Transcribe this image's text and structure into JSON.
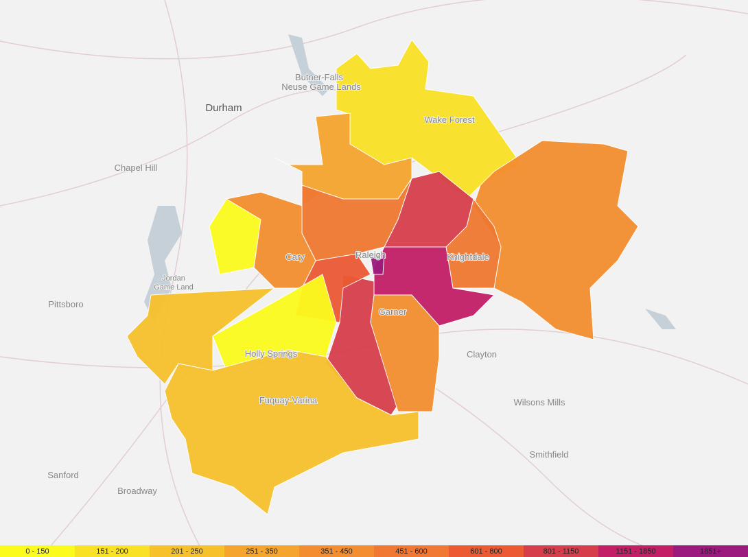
{
  "map": {
    "places": [
      "Durham",
      "Chapel Hill",
      "Butner-Falls",
      "Neuse Game Lands",
      "Wake Forest",
      "Cary",
      "Raleigh",
      "Knightdale",
      "Garner",
      "Jordan",
      "Game Land",
      "Pittsboro",
      "Clayton",
      "Wilsons Mills",
      "Smithfield",
      "Sanford",
      "Broadway",
      "Holly Springs",
      "Fuquay-Varina"
    ]
  },
  "legend": {
    "bins": [
      {
        "label": "0 - 150",
        "color": "#fbfb1e"
      },
      {
        "label": "151 - 200",
        "color": "#f9e225"
      },
      {
        "label": "201 - 250",
        "color": "#f7c12c"
      },
      {
        "label": "251 - 350",
        "color": "#f5a52e"
      },
      {
        "label": "351 - 450",
        "color": "#f38e30"
      },
      {
        "label": "451 - 600",
        "color": "#f07832"
      },
      {
        "label": "601 - 800",
        "color": "#ec5a34"
      },
      {
        "label": "801 - 1150",
        "color": "#d73e4c"
      },
      {
        "label": "1151 - 1850",
        "color": "#c21f66"
      },
      {
        "label": "1851+",
        "color": "#9c1a7e"
      }
    ]
  }
}
